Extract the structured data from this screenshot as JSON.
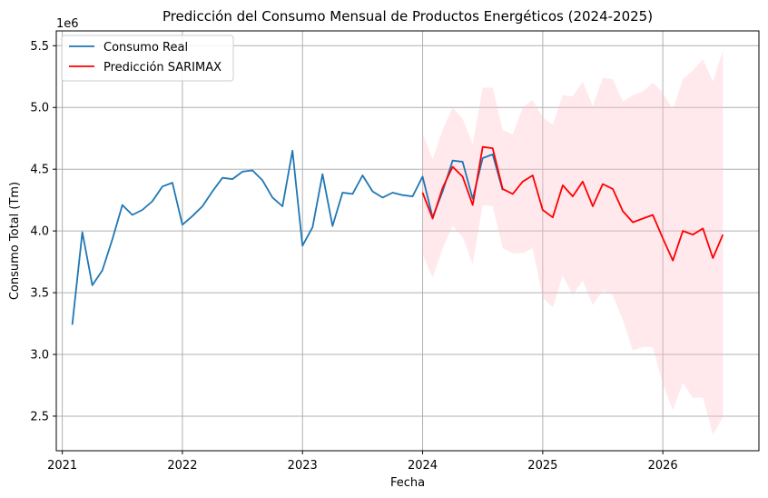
{
  "chart_data": {
    "type": "line",
    "title": "Predicción del Consumo Mensual de Productos Energéticos (2024-2025)",
    "xlabel": "Fecha",
    "ylabel": "Consumo Total (Tm)",
    "y_offset_label": "1e6",
    "xlim": [
      2020.95,
      2026.8
    ],
    "ylim": [
      2.22,
      5.62
    ],
    "x_ticks": [
      2021,
      2022,
      2023,
      2024,
      2025,
      2026
    ],
    "x_tick_labels": [
      "2021",
      "2022",
      "2023",
      "2024",
      "2025",
      "2026"
    ],
    "y_ticks": [
      2.5,
      3.0,
      3.5,
      4.0,
      4.5,
      5.0,
      5.5
    ],
    "y_tick_labels": [
      "2.5",
      "3.0",
      "3.5",
      "4.0",
      "4.5",
      "5.0",
      "5.5"
    ],
    "grid": true,
    "legend_position": "top-left",
    "series": [
      {
        "name": "Consumo Real",
        "color": "#1f77b4",
        "x": [
          "2021-02",
          "2021-03",
          "2021-04",
          "2021-05",
          "2021-06",
          "2021-07",
          "2021-08",
          "2021-09",
          "2021-10",
          "2021-11",
          "2021-12",
          "2022-01",
          "2022-02",
          "2022-03",
          "2022-04",
          "2022-05",
          "2022-06",
          "2022-07",
          "2022-08",
          "2022-09",
          "2022-10",
          "2022-11",
          "2022-12",
          "2023-01",
          "2023-02",
          "2023-03",
          "2023-04",
          "2023-05",
          "2023-06",
          "2023-07",
          "2023-08",
          "2023-09",
          "2023-10",
          "2023-11",
          "2023-12",
          "2024-01",
          "2024-02",
          "2024-03",
          "2024-04",
          "2024-05",
          "2024-06",
          "2024-07",
          "2024-08",
          "2024-09"
        ],
        "values": [
          3.24,
          3.99,
          3.56,
          3.68,
          3.93,
          4.21,
          4.13,
          4.17,
          4.24,
          4.36,
          4.39,
          4.05,
          4.12,
          4.2,
          4.32,
          4.43,
          4.42,
          4.48,
          4.49,
          4.41,
          4.27,
          4.2,
          4.65,
          3.88,
          4.03,
          4.46,
          4.04,
          4.31,
          4.3,
          4.45,
          4.32,
          4.27,
          4.31,
          4.29,
          4.28,
          4.44,
          4.11,
          4.32,
          4.57,
          4.56,
          4.26,
          4.59,
          4.62,
          4.33
        ]
      },
      {
        "name": "Predicción SARIMAX",
        "color": "#ff0000",
        "x": [
          "2024-01",
          "2024-02",
          "2024-03",
          "2024-04",
          "2024-05",
          "2024-06",
          "2024-07",
          "2024-08",
          "2024-09",
          "2024-10",
          "2024-11",
          "2024-12",
          "2025-01",
          "2025-02",
          "2025-03",
          "2025-04",
          "2025-05",
          "2025-06",
          "2025-07",
          "2025-08",
          "2025-09",
          "2025-10",
          "2025-11",
          "2025-12",
          "2026-01",
          "2026-02",
          "2026-03",
          "2026-04",
          "2026-05",
          "2026-06",
          "2026-07"
        ],
        "values": [
          4.31,
          4.1,
          4.35,
          4.52,
          4.44,
          4.21,
          4.68,
          4.67,
          4.34,
          4.3,
          4.4,
          4.45,
          4.17,
          4.11,
          4.37,
          4.28,
          4.4,
          4.2,
          4.38,
          4.34,
          4.16,
          4.07,
          4.1,
          4.13,
          3.94,
          3.76,
          4.0,
          3.97,
          4.02,
          3.78,
          3.97
        ]
      }
    ],
    "confidence_band": {
      "color": "#ffc0cb",
      "x": [
        "2024-01",
        "2024-02",
        "2024-03",
        "2024-04",
        "2024-05",
        "2024-06",
        "2024-07",
        "2024-08",
        "2024-09",
        "2024-10",
        "2024-11",
        "2024-12",
        "2025-01",
        "2025-02",
        "2025-03",
        "2025-04",
        "2025-05",
        "2025-06",
        "2025-07",
        "2025-08",
        "2025-09",
        "2025-10",
        "2025-11",
        "2025-12",
        "2026-01",
        "2026-02",
        "2026-03",
        "2026-04",
        "2026-05",
        "2026-06",
        "2026-07"
      ],
      "upper": [
        4.79,
        4.58,
        4.82,
        5.0,
        4.91,
        4.7,
        5.16,
        5.16,
        4.82,
        4.78,
        5.0,
        5.06,
        4.92,
        4.86,
        5.1,
        5.09,
        5.21,
        5.01,
        5.24,
        5.23,
        5.05,
        5.1,
        5.13,
        5.2,
        5.12,
        4.98,
        5.23,
        5.3,
        5.39,
        5.21,
        5.46
      ],
      "lower": [
        3.81,
        3.62,
        3.86,
        4.04,
        3.95,
        3.73,
        4.21,
        4.2,
        3.86,
        3.82,
        3.82,
        3.86,
        3.46,
        3.38,
        3.64,
        3.48,
        3.6,
        3.4,
        3.52,
        3.48,
        3.28,
        3.03,
        3.06,
        3.06,
        2.76,
        2.55,
        2.77,
        2.65,
        2.65,
        2.35,
        2.49
      ]
    }
  }
}
